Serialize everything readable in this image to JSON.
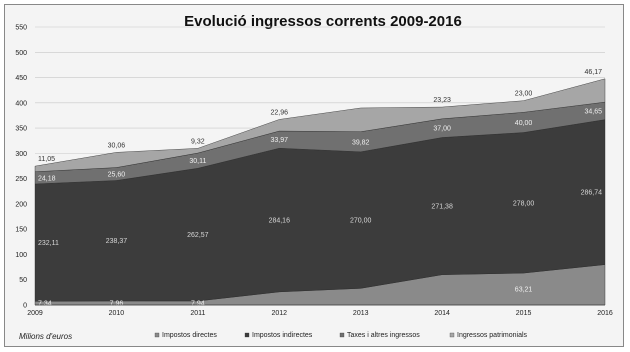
{
  "chart_data": {
    "type": "area",
    "title": "Evolució ingressos corrents 2009-2016",
    "unit_label": "Milions d'euros",
    "categories": [
      "2009",
      "2010",
      "2011",
      "2012",
      "2013",
      "2014",
      "2015",
      "2016"
    ],
    "ylim": [
      0,
      550
    ],
    "yticks": [
      0,
      50,
      100,
      150,
      200,
      250,
      300,
      350,
      400,
      450,
      500,
      550
    ],
    "grid": true,
    "legend_position": "bottom",
    "series": [
      {
        "name": "Impostos directes",
        "color": "#8a8a8a",
        "values": [
          7.34,
          7.96,
          7.94,
          26.0,
          33.0,
          60.0,
          63.21,
          80.0
        ],
        "labels": [
          "7,34",
          "7,96",
          "7,94",
          "",
          "",
          "",
          "63,21",
          ""
        ]
      },
      {
        "name": "Impostos indirectes",
        "color": "#3c3c3c",
        "values": [
          232.11,
          238.37,
          262.57,
          284.16,
          270.0,
          271.38,
          278.0,
          286.74
        ],
        "labels": [
          "232,11",
          "238,37",
          "262,57",
          "284,16",
          "270,00",
          "271,38",
          "278,00",
          "286,74"
        ]
      },
      {
        "name": "Taxes i altres ingressos",
        "color": "#707070",
        "values": [
          24.18,
          25.6,
          30.11,
          33.97,
          39.82,
          37.0,
          40.0,
          34.65
        ],
        "labels": [
          "24,18",
          "25,60",
          "30,11",
          "33,97",
          "39,82",
          "37,00",
          "40,00",
          "34,65"
        ]
      },
      {
        "name": "Ingressos patrimonials",
        "color": "#a6a6a6",
        "values": [
          11.05,
          30.06,
          9.32,
          22.96,
          47.0,
          23.23,
          23.0,
          46.17
        ],
        "labels": [
          "11,05",
          "30,06",
          "9,32",
          "22,96",
          "",
          "23,23",
          "23,00",
          "46,17"
        ]
      }
    ]
  }
}
